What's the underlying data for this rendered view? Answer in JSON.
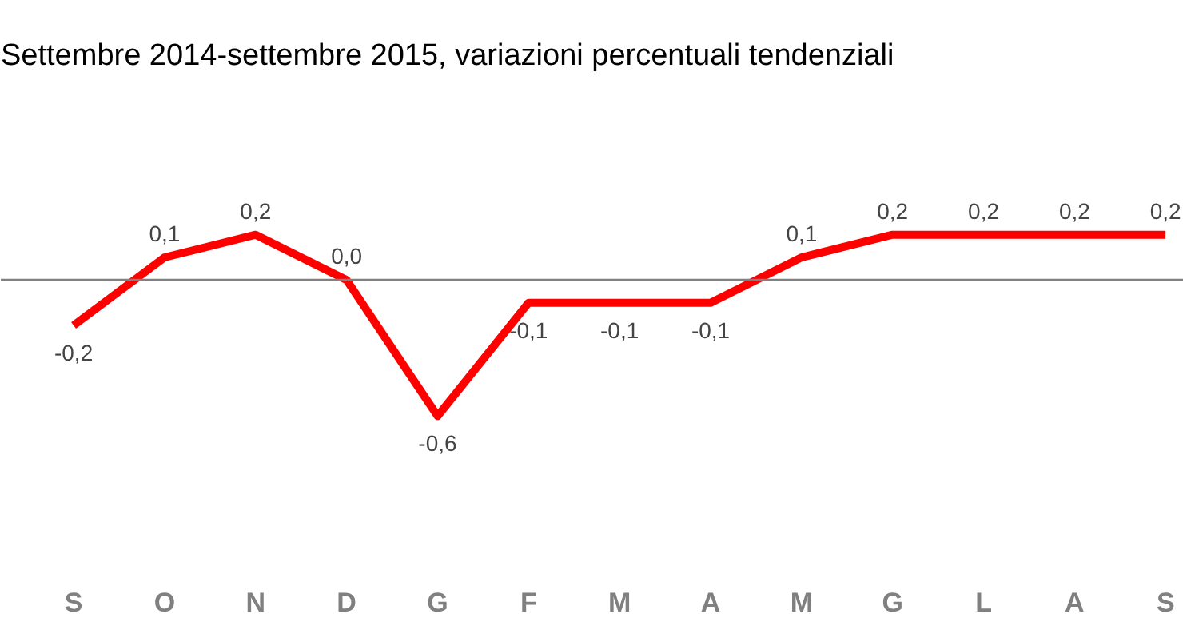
{
  "chart_data": {
    "type": "line",
    "title": "Settembre 2014-settembre 2015, variazioni percentuali tendenziali",
    "categories": [
      "S",
      "O",
      "N",
      "D",
      "G",
      "F",
      "M",
      "A",
      "M",
      "G",
      "L",
      "A",
      "S"
    ],
    "series": [
      {
        "color": "#ff0000",
        "values": [
          -0.2,
          0.1,
          0.2,
          0.0,
          -0.6,
          -0.1,
          -0.1,
          -0.1,
          0.1,
          0.2,
          0.2,
          0.2,
          0.2
        ],
        "value_labels": [
          "-0,2",
          "0,1",
          "0,2",
          "0,0",
          "-0,6",
          "-0,1",
          "-0,1",
          "-0,1",
          "0,1",
          "0,2",
          "0,2",
          "0,2",
          "0,2"
        ]
      }
    ],
    "ref_lines": [
      {
        "axis": "y",
        "value": 0,
        "color": "#808080"
      }
    ],
    "marker": "none",
    "line_style": "solid"
  }
}
